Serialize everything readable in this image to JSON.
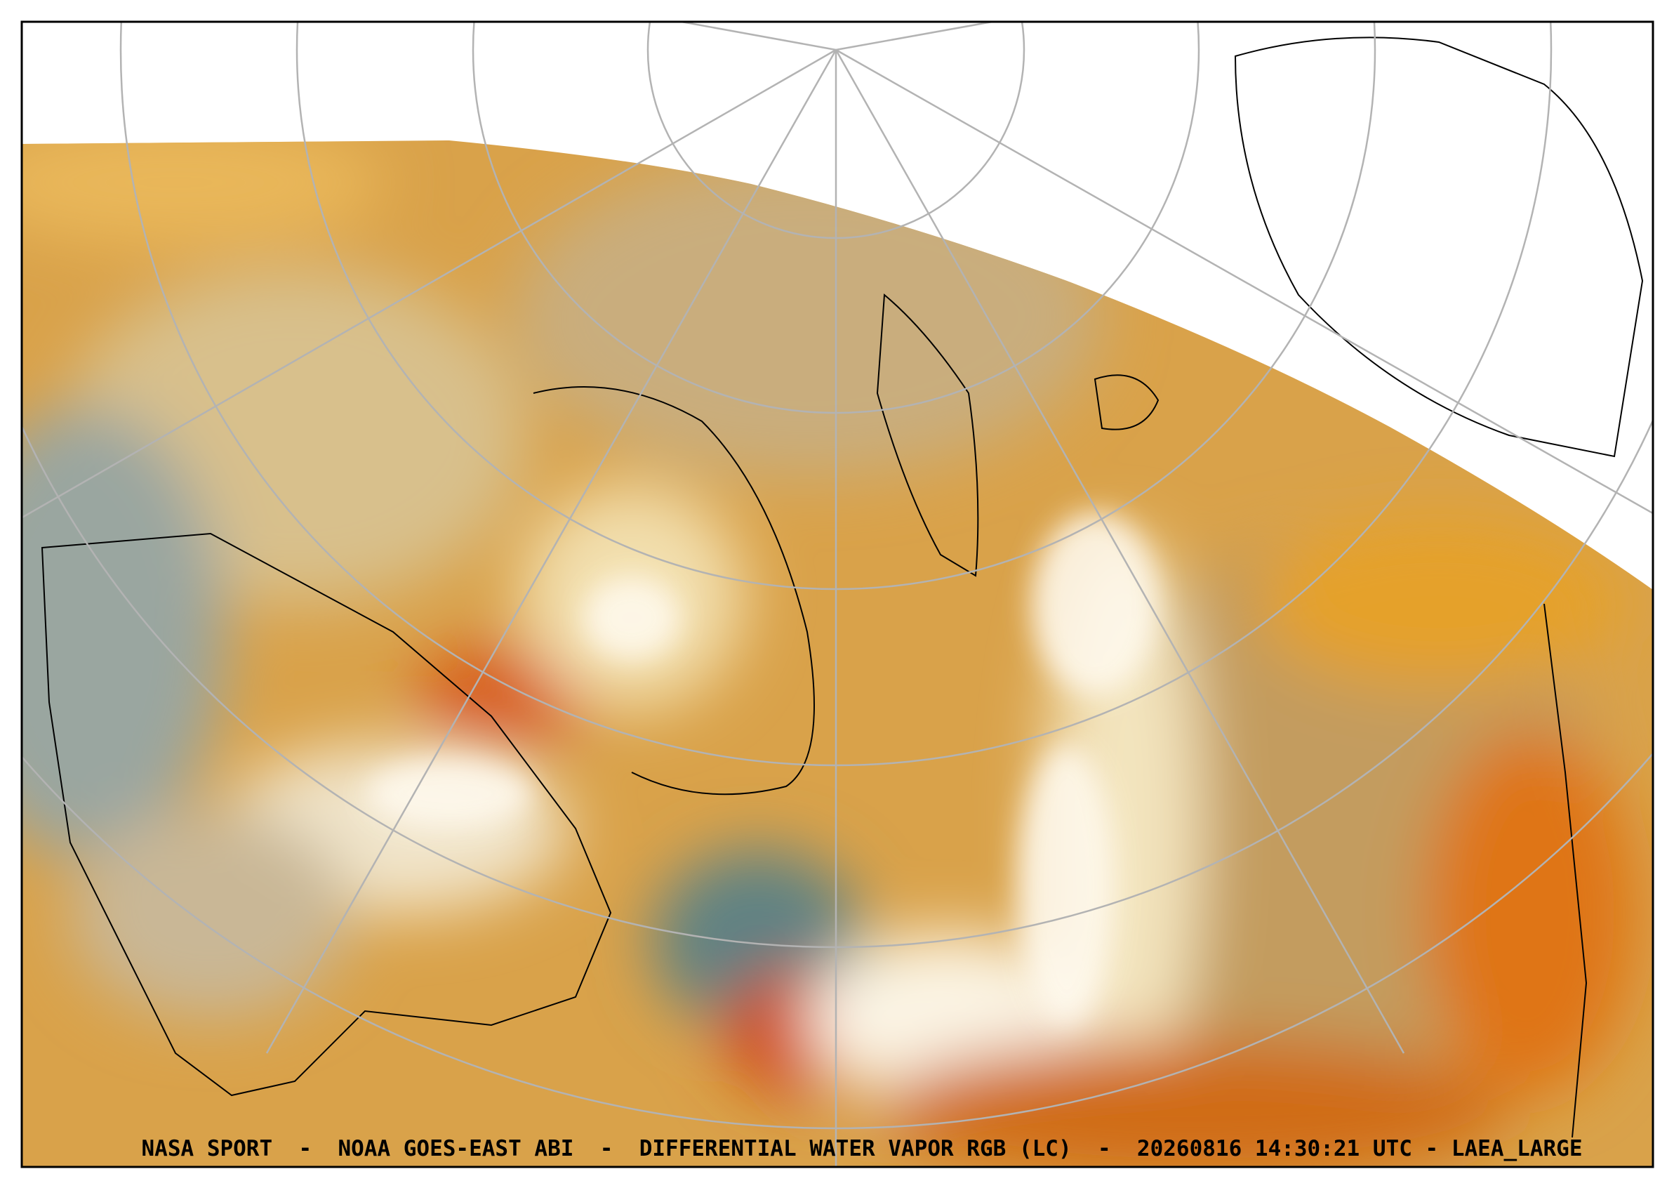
{
  "caption": "NASA SPORT  -  NOAA GOES-EAST ABI  -  DIFFERENTIAL WATER VAPOR RGB (LC)  -  20260816 14:30:21 UTC - LAEA_LARGE"
}
